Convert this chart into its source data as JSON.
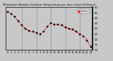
{
  "title": "Milwaukee Weather Outdoor Temperature per Hour (Last 24 Hours)",
  "hours": [
    0,
    1,
    2,
    3,
    4,
    5,
    6,
    7,
    8,
    9,
    10,
    11,
    12,
    13,
    14,
    15,
    16,
    17,
    18,
    19,
    20,
    21,
    22,
    23
  ],
  "temps": [
    46,
    44,
    41,
    37,
    33,
    30,
    28,
    27,
    26,
    25,
    27,
    32,
    35,
    34,
    34,
    33,
    31,
    30,
    29,
    27,
    25,
    23,
    19,
    13
  ],
  "line_color": "#FF0000",
  "marker_color": "#000000",
  "bg_color": "#c8c8c8",
  "plot_bg_color": "#c8c8c8",
  "grid_color": "#666666",
  "ylim": [
    10,
    50
  ],
  "xlim": [
    -0.5,
    23.5
  ],
  "yticks": [
    10,
    15,
    20,
    25,
    30,
    35,
    40,
    45,
    50
  ],
  "ylabel_right": true,
  "legend_label": "Outdoor",
  "legend_color": "#FF0000",
  "vgrid_positions": [
    4,
    8,
    12,
    16,
    20
  ]
}
